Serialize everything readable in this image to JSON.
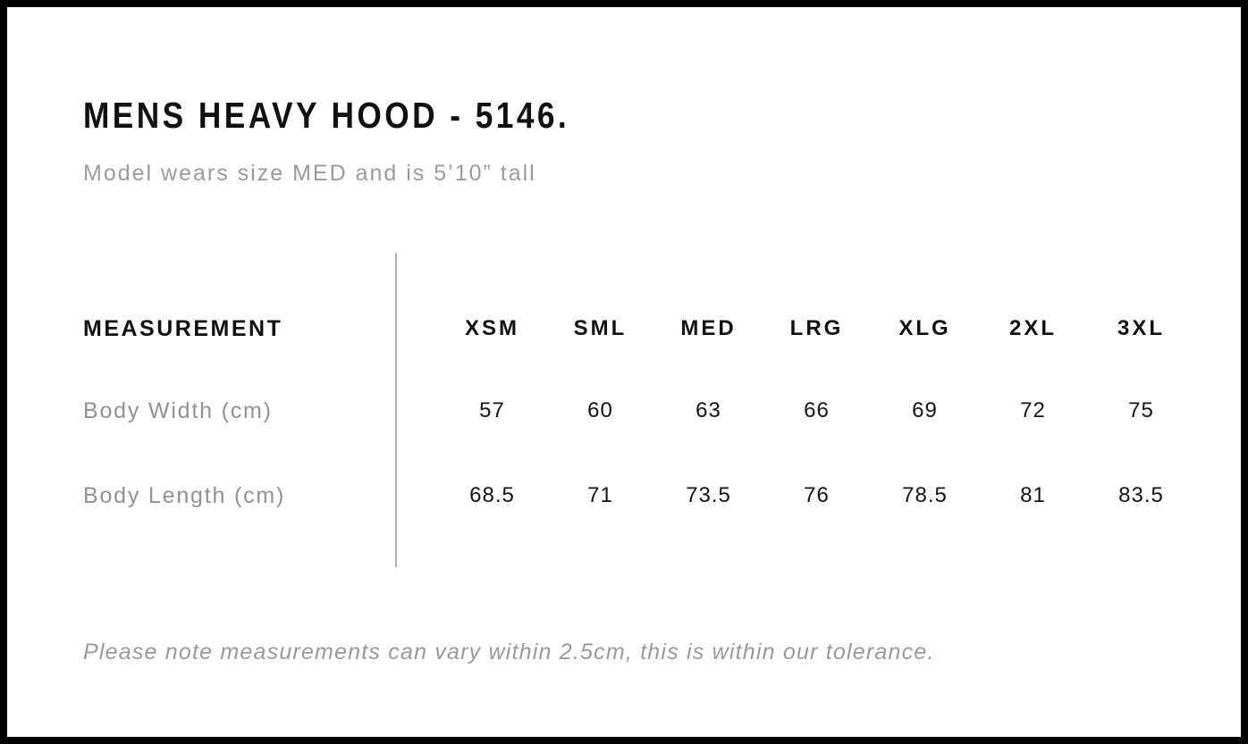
{
  "header": {
    "title": "MENS HEAVY HOOD - 5146.",
    "subtitle": "Model wears size MED and is 5’10” tall"
  },
  "size_chart": {
    "measurement_header": "MEASUREMENT",
    "sizes": [
      "XSM",
      "SML",
      "MED",
      "LRG",
      "XLG",
      "2XL",
      "3XL"
    ],
    "rows": [
      {
        "label": "Body Width (cm)",
        "values": [
          "57",
          "60",
          "63",
          "66",
          "69",
          "72",
          "75"
        ]
      },
      {
        "label": "Body Length (cm)",
        "values": [
          "68.5",
          "71",
          "73.5",
          "76",
          "78.5",
          "81",
          "83.5"
        ]
      }
    ]
  },
  "footer": {
    "note": "Please note measurements can vary within 2.5cm, this is within our tolerance."
  },
  "colors": {
    "text_primary": "#111111",
    "text_secondary": "#9a9a9a",
    "divider": "#b0b0b0",
    "frame_border": "#000000",
    "background": "#ffffff"
  }
}
